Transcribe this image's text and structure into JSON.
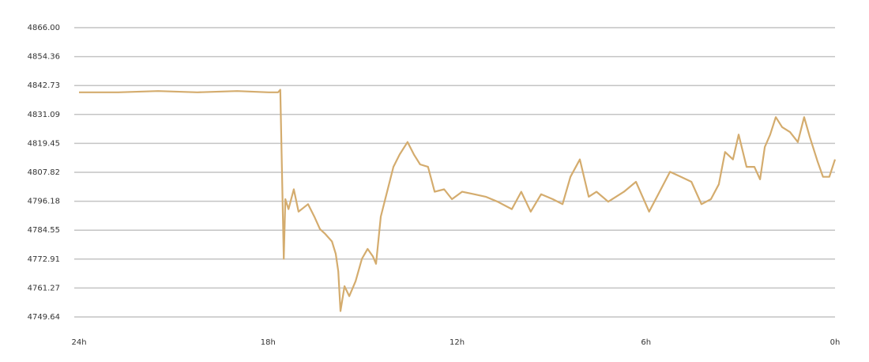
{
  "chart_data": {
    "type": "line",
    "x": [
      24,
      22.75,
      21.49,
      20.24,
      18.98,
      17.98,
      17.68,
      17.61,
      17.55,
      17.5,
      17.45,
      17.35,
      17.18,
      17.03,
      16.73,
      16.53,
      16.35,
      16.18,
      15.97,
      15.85,
      15.77,
      15.7,
      15.57,
      15.42,
      15.22,
      15.02,
      14.84,
      14.67,
      14.57,
      14.42,
      14.22,
      14.02,
      13.82,
      13.57,
      13.37,
      13.17,
      12.92,
      12.71,
      12.41,
      12.16,
      11.84,
      11.46,
      11.09,
      10.71,
      10.26,
      9.96,
      9.66,
      9.33,
      8.96,
      8.65,
      8.4,
      8.1,
      7.82,
      7.57,
      7.2,
      6.7,
      6.32,
      5.9,
      5.57,
      5.24,
      4.89,
      4.56,
      4.24,
      3.94,
      3.69,
      3.49,
      3.24,
      3.06,
      2.81,
      2.56,
      2.38,
      2.23,
      2.06,
      1.88,
      1.68,
      1.43,
      1.18,
      0.98,
      0.8,
      0.55,
      0.38,
      0.18,
      0
    ],
    "series": [
      {
        "color": "#d4ac6e",
        "values": [
          4840,
          4840,
          4840.5,
          4840,
          4840.5,
          4840,
          4840,
          4841,
          4804,
          4773,
          4797,
          4793,
          4801,
          4792,
          4795,
          4790,
          4785,
          4783,
          4780,
          4775,
          4768,
          4752,
          4762,
          4758,
          4764,
          4773,
          4777,
          4774,
          4771,
          4790,
          4800,
          4810,
          4815,
          4820,
          4815,
          4811,
          4810,
          4800,
          4801,
          4797,
          4800,
          4799,
          4798,
          4796,
          4793,
          4800,
          4792,
          4799,
          4797,
          4795,
          4806,
          4813,
          4798,
          4800,
          4796,
          4800,
          4804,
          4792,
          4800,
          4808,
          4806,
          4804,
          4795,
          4797,
          4803,
          4816,
          4813,
          4823,
          4810,
          4810,
          4805,
          4818,
          4823,
          4830,
          4826,
          4824,
          4820,
          4830,
          4822,
          4812,
          4806,
          4806,
          4813
        ]
      }
    ],
    "xlim": [
      24,
      0
    ],
    "xticks": [
      {
        "value": 24,
        "label": "24h"
      },
      {
        "value": 18,
        "label": "18h"
      },
      {
        "value": 12,
        "label": "12h"
      },
      {
        "value": 6,
        "label": "6h"
      },
      {
        "value": 0,
        "label": "0h"
      }
    ],
    "ylim": [
      4749.64,
      4866
    ],
    "yticks": [
      4749.64,
      4761.27,
      4772.91,
      4784.55,
      4796.18,
      4807.82,
      4819.45,
      4831.09,
      4842.73,
      4854.36,
      {
        "value": 4866,
        "label": "4866.00"
      }
    ],
    "grid": true
  }
}
